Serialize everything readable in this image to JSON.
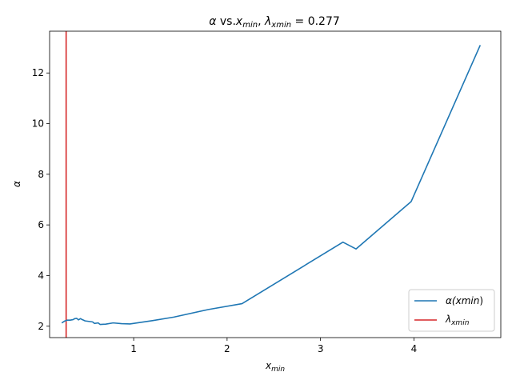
{
  "chart_data": {
    "type": "line",
    "title": {
      "alpha": "α",
      "vs": " vs.",
      "x": "x",
      "x_sub": "min",
      "sep": ", ",
      "lambda": "λ",
      "lambda_sub": "xmin",
      "eq": " = 0.277"
    },
    "xlabel": {
      "main": "x",
      "sub": "min"
    },
    "ylabel": "α",
    "xlim": [
      0.1,
      4.93
    ],
    "ylim": [
      1.55,
      13.65
    ],
    "xticks": [
      1,
      2,
      3,
      4
    ],
    "yticks": [
      2,
      4,
      6,
      8,
      10,
      12
    ],
    "grid": false,
    "legend_position": "lower-right",
    "series": [
      {
        "name": {
          "main": "α(",
          "italic": "xmin",
          "close": ")"
        },
        "color": "#1f77b4",
        "points": [
          [
            0.23,
            2.13
          ],
          [
            0.26,
            2.2
          ],
          [
            0.29,
            2.24
          ],
          [
            0.32,
            2.24
          ],
          [
            0.35,
            2.26
          ],
          [
            0.37,
            2.3
          ],
          [
            0.39,
            2.31
          ],
          [
            0.41,
            2.25
          ],
          [
            0.43,
            2.3
          ],
          [
            0.45,
            2.26
          ],
          [
            0.48,
            2.21
          ],
          [
            0.52,
            2.19
          ],
          [
            0.56,
            2.17
          ],
          [
            0.58,
            2.11
          ],
          [
            0.62,
            2.13
          ],
          [
            0.64,
            2.07
          ],
          [
            0.7,
            2.08
          ],
          [
            0.78,
            2.13
          ],
          [
            0.87,
            2.1
          ],
          [
            0.96,
            2.09
          ],
          [
            1.2,
            2.22
          ],
          [
            1.43,
            2.36
          ],
          [
            1.8,
            2.66
          ],
          [
            2.16,
            2.89
          ],
          [
            3.24,
            5.32
          ],
          [
            3.38,
            5.05
          ],
          [
            3.97,
            6.92
          ],
          [
            4.71,
            13.1
          ]
        ]
      }
    ],
    "vline": {
      "name": {
        "main": "λ",
        "sub": "xmin"
      },
      "x": 0.277,
      "color": "#d62728"
    }
  }
}
